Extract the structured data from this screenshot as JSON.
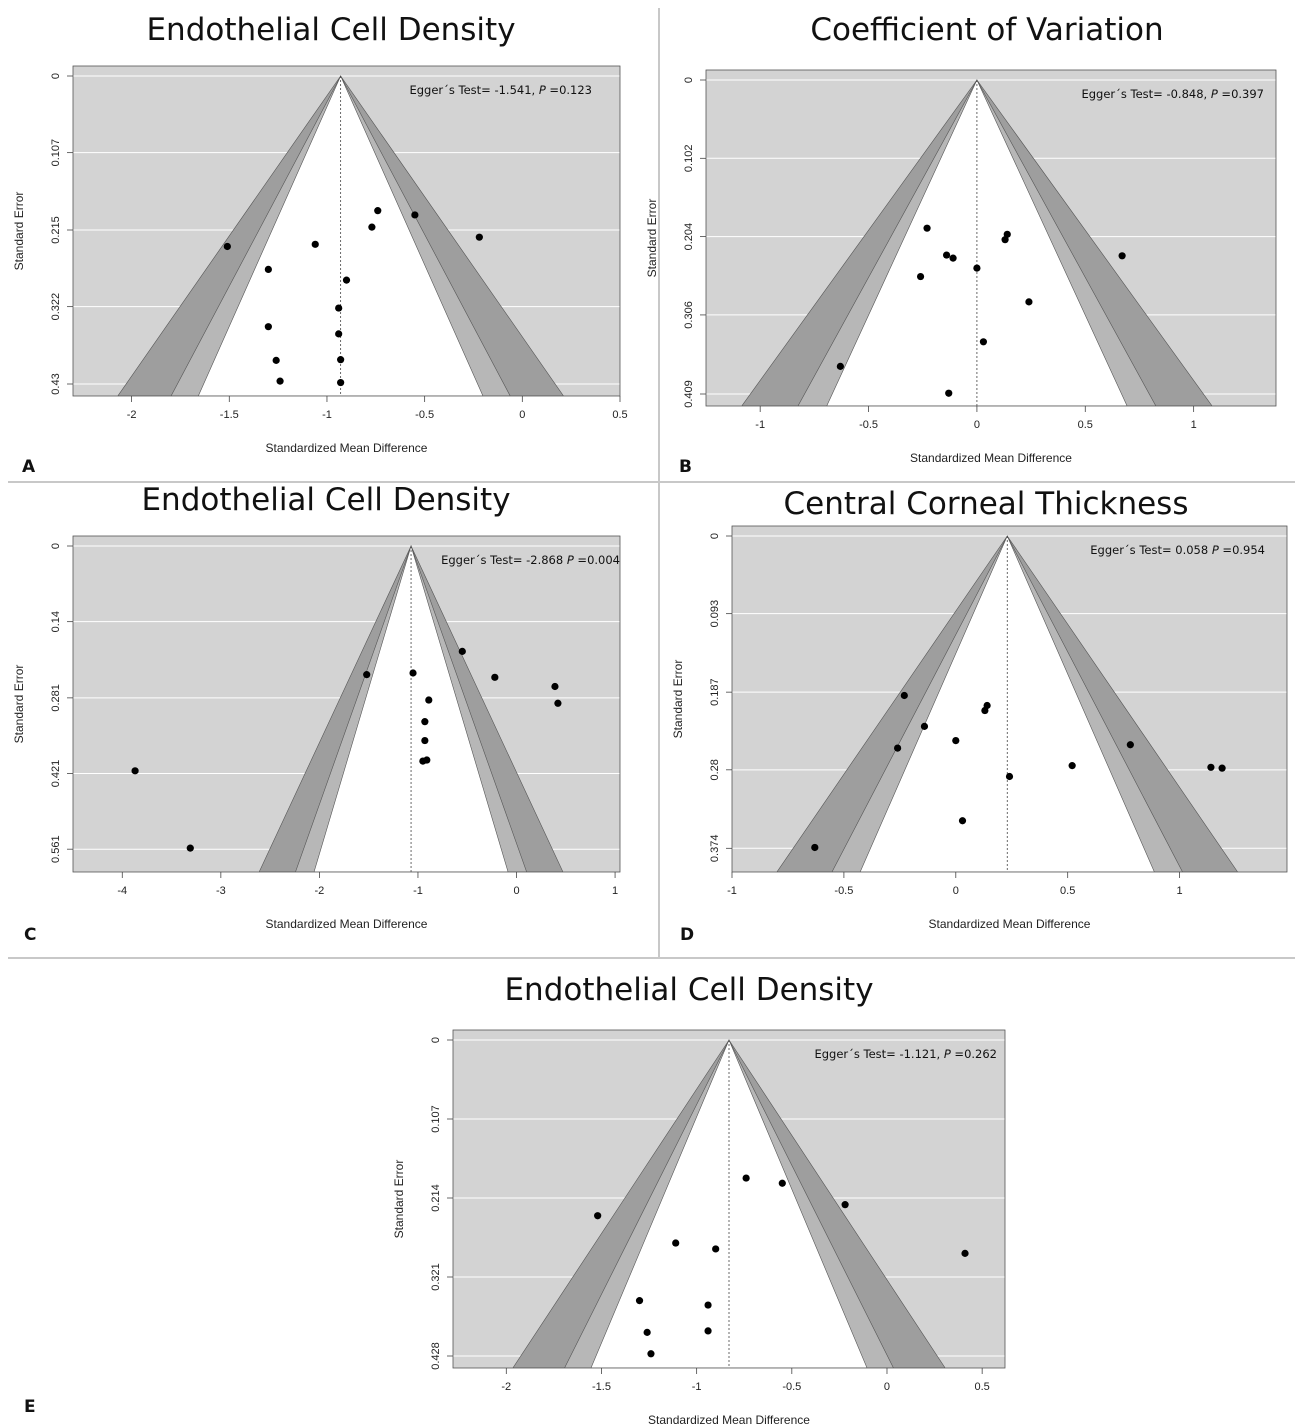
{
  "chart_data": [
    {
      "panel_label": "A",
      "type": "scatter",
      "title": "Endothelial Cell Density",
      "xlabel": "Standardized Mean Difference",
      "ylabel": "Standard Error",
      "xlim": [
        -2.3,
        0.5
      ],
      "ylim": [
        0.43,
        0
      ],
      "y_reversed": true,
      "xticks": [
        "-2",
        "-1.5",
        "-1",
        "-0.5",
        "0",
        "0.5"
      ],
      "xtick_values": [
        -2,
        -1.5,
        -1,
        -0.5,
        0,
        0.5
      ],
      "yticks": [
        "0",
        "0.107",
        "0.215",
        "0.322",
        "0.43"
      ],
      "ytick_values": [
        0,
        0.107,
        0.215,
        0.322,
        0.43
      ],
      "summary_estimate": -0.93,
      "annotation": {
        "text": "Egger´s Test= -1.541, ",
        "p_label": "P",
        "p_text": " =0.123"
      },
      "grid": true,
      "points": [
        {
          "x": -1.51,
          "y": 0.238
        },
        {
          "x": -1.06,
          "y": 0.235
        },
        {
          "x": -0.74,
          "y": 0.188
        },
        {
          "x": -0.55,
          "y": 0.194
        },
        {
          "x": -0.22,
          "y": 0.225
        },
        {
          "x": -0.77,
          "y": 0.211
        },
        {
          "x": -1.3,
          "y": 0.27
        },
        {
          "x": -0.9,
          "y": 0.285
        },
        {
          "x": -0.94,
          "y": 0.324
        },
        {
          "x": -1.3,
          "y": 0.35
        },
        {
          "x": -0.94,
          "y": 0.36
        },
        {
          "x": -1.26,
          "y": 0.397
        },
        {
          "x": -0.93,
          "y": 0.396
        },
        {
          "x": -1.24,
          "y": 0.426
        },
        {
          "x": -0.93,
          "y": 0.428
        }
      ]
    },
    {
      "panel_label": "B",
      "type": "scatter",
      "title": "Coefficient of Variation",
      "xlabel": "Standardized Mean Difference",
      "ylabel": "Standard Error",
      "xlim": [
        -1.25,
        1.38
      ],
      "ylim": [
        0.409,
        0
      ],
      "y_reversed": true,
      "xticks": [
        "-1",
        "-0.5",
        "0",
        "0.5",
        "1"
      ],
      "xtick_values": [
        -1,
        -0.5,
        0,
        0.5,
        1
      ],
      "yticks": [
        "0",
        "0.102",
        "0.204",
        "0.306",
        "0.409"
      ],
      "ytick_values": [
        0,
        0.102,
        0.204,
        0.306,
        0.409
      ],
      "summary_estimate": 0.0,
      "annotation": {
        "text": "Egger´s Test= -0.848, ",
        "p_label": "P",
        "p_text": " =0.397"
      },
      "grid": true,
      "points": [
        {
          "x": -0.23,
          "y": 0.193
        },
        {
          "x": 0.14,
          "y": 0.201
        },
        {
          "x": 0.13,
          "y": 0.208
        },
        {
          "x": -0.14,
          "y": 0.228
        },
        {
          "x": -0.11,
          "y": 0.232
        },
        {
          "x": 0.67,
          "y": 0.229
        },
        {
          "x": -0.26,
          "y": 0.256
        },
        {
          "x": 0.0,
          "y": 0.245
        },
        {
          "x": 0.24,
          "y": 0.289
        },
        {
          "x": 0.03,
          "y": 0.341
        },
        {
          "x": -0.63,
          "y": 0.373
        },
        {
          "x": -0.13,
          "y": 0.408
        }
      ]
    },
    {
      "panel_label": "C",
      "type": "scatter",
      "title": "Endothelial Cell Density",
      "xlabel": "Standardized Mean Difference",
      "ylabel": "Standard Error",
      "xlim": [
        -4.5,
        1.05
      ],
      "ylim": [
        0.581,
        0
      ],
      "y_reversed": true,
      "xticks": [
        "-4",
        "-3",
        "-2",
        "-1",
        "0",
        "1"
      ],
      "xtick_values": [
        -4,
        -3,
        -2,
        -1,
        0,
        1
      ],
      "yticks": [
        "0",
        "0.14",
        "0.281",
        "0.421",
        "0.561"
      ],
      "ytick_values": [
        0,
        0.14,
        0.281,
        0.421,
        0.561
      ],
      "summary_estimate": -1.07,
      "annotation": {
        "text": "Egger´s Test= -2.868 ",
        "p_label": "P",
        "p_text": " =0.004"
      },
      "grid": true,
      "points": [
        {
          "x": -0.55,
          "y": 0.195
        },
        {
          "x": -1.52,
          "y": 0.238
        },
        {
          "x": -1.05,
          "y": 0.235
        },
        {
          "x": -0.22,
          "y": 0.243
        },
        {
          "x": 0.39,
          "y": 0.26
        },
        {
          "x": 0.42,
          "y": 0.291
        },
        {
          "x": -0.89,
          "y": 0.285
        },
        {
          "x": -0.93,
          "y": 0.325
        },
        {
          "x": -0.93,
          "y": 0.36
        },
        {
          "x": -0.95,
          "y": 0.398
        },
        {
          "x": -0.91,
          "y": 0.396
        },
        {
          "x": -3.87,
          "y": 0.416
        },
        {
          "x": -3.31,
          "y": 0.559
        }
      ]
    },
    {
      "panel_label": "D",
      "type": "scatter",
      "title": "Central Corneal Thickness",
      "xlabel": "Standardized Mean Difference",
      "ylabel": "Standard Error",
      "xlim": [
        -1.0,
        1.48
      ],
      "ylim": [
        0.388,
        0
      ],
      "y_reversed": true,
      "xticks": [
        "-1",
        "-0.5",
        "0",
        "0.5",
        "1"
      ],
      "xtick_values": [
        -1,
        -0.5,
        0,
        0.5,
        1
      ],
      "yticks": [
        "0",
        "0.093",
        "0.187",
        "0.28",
        "0.374"
      ],
      "ytick_values": [
        0,
        0.093,
        0.187,
        0.28,
        0.374
      ],
      "summary_estimate": 0.23,
      "annotation": {
        "text": "Egger´s Test= 0.058 ",
        "p_label": "P",
        "p_text": " =0.954"
      },
      "grid": true,
      "points": [
        {
          "x": -0.23,
          "y": 0.191
        },
        {
          "x": 0.14,
          "y": 0.203
        },
        {
          "x": 0.13,
          "y": 0.209
        },
        {
          "x": -0.14,
          "y": 0.228
        },
        {
          "x": 0.0,
          "y": 0.245
        },
        {
          "x": 0.78,
          "y": 0.25
        },
        {
          "x": -0.26,
          "y": 0.254
        },
        {
          "x": 0.52,
          "y": 0.275
        },
        {
          "x": 1.14,
          "y": 0.277
        },
        {
          "x": 1.19,
          "y": 0.278
        },
        {
          "x": 0.24,
          "y": 0.288
        },
        {
          "x": 0.03,
          "y": 0.341
        },
        {
          "x": -0.63,
          "y": 0.373
        }
      ]
    },
    {
      "panel_label": "E",
      "type": "scatter",
      "title": "Endothelial Cell Density",
      "xlabel": "Standardized Mean Difference",
      "ylabel": "Standard Error",
      "xlim": [
        -2.28,
        0.62
      ],
      "ylim": [
        0.428,
        0
      ],
      "y_reversed": true,
      "xticks": [
        "-2",
        "-1.5",
        "-1",
        "-0.5",
        "0",
        "0.5"
      ],
      "xtick_values": [
        -2,
        -1.5,
        -1,
        -0.5,
        0,
        0.5
      ],
      "yticks": [
        "0",
        "0.107",
        "0.214",
        "0.321",
        "0.428"
      ],
      "ytick_values": [
        0,
        0.107,
        0.214,
        0.321,
        0.428
      ],
      "summary_estimate": -0.83,
      "annotation": {
        "text": "Egger´s Test= -1.121, ",
        "p_label": "P",
        "p_text": " =0.262"
      },
      "grid": true,
      "points": [
        {
          "x": -0.74,
          "y": 0.187
        },
        {
          "x": -0.55,
          "y": 0.194
        },
        {
          "x": -0.22,
          "y": 0.223
        },
        {
          "x": -1.52,
          "y": 0.238
        },
        {
          "x": -1.11,
          "y": 0.275
        },
        {
          "x": -0.9,
          "y": 0.283
        },
        {
          "x": 0.41,
          "y": 0.289
        },
        {
          "x": -1.3,
          "y": 0.353
        },
        {
          "x": -0.94,
          "y": 0.359
        },
        {
          "x": -1.26,
          "y": 0.396
        },
        {
          "x": -0.94,
          "y": 0.394
        },
        {
          "x": -1.24,
          "y": 0.425
        }
      ]
    }
  ]
}
